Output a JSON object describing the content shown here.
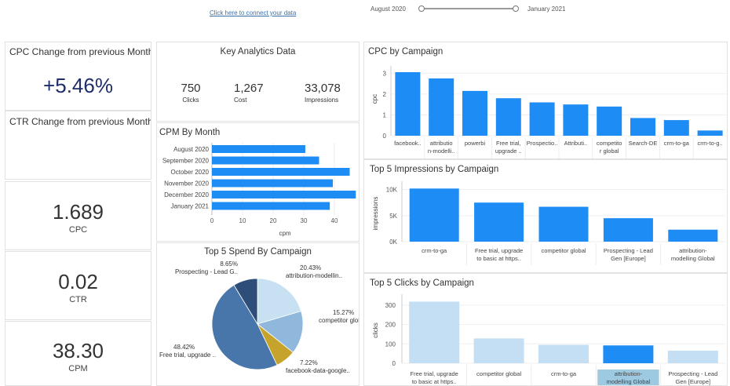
{
  "header": {
    "connect_link": "Click here to connect your data",
    "date_start": "August 2020",
    "date_end": "January 2021"
  },
  "kpis": {
    "cpc_change_title": "CPC Change from previous Month",
    "cpc_change_value": "+5.46%",
    "ctr_change_title": "CTR Change from previous Month",
    "cpc_value": "1.689",
    "cpc_label": "CPC",
    "ctr_value": "0.02",
    "ctr_label": "CTR",
    "cpm_value": "38.30",
    "cpm_label": "CPM"
  },
  "key_analytics": {
    "title": "Key Analytics Data",
    "items": [
      {
        "value": "750",
        "label": "Clicks"
      },
      {
        "value": "1,267",
        "label": "Cost"
      },
      {
        "value": "33,078",
        "label": "Impressions"
      }
    ]
  },
  "colors": {
    "accent": "#1e8cf5",
    "light": "#c4dff4",
    "highlight": "#9ecae1",
    "kpi_blue": "#1f2d6b",
    "pie": [
      "#c7e1f3",
      "#8fb8dc",
      "#c6a42c",
      "#4876aa",
      "#2e4d78"
    ]
  },
  "chart_data": [
    {
      "id": "cpm_by_month",
      "type": "bar",
      "orientation": "horizontal",
      "title": "CPM By Month",
      "categories": [
        "August 2020",
        "September 2020",
        "October 2020",
        "November 2020",
        "December 2020",
        "January 2021"
      ],
      "values": [
        30.5,
        35,
        45,
        39.5,
        47,
        38.5
      ],
      "xlabel": "cpm",
      "xlim": [
        0,
        50
      ],
      "xticks": [
        "0",
        "10",
        "20",
        "30",
        "40"
      ]
    },
    {
      "id": "cpc_by_campaign",
      "type": "bar",
      "title": "CPC by Campaign",
      "categories": [
        [
          "facebook.."
        ],
        [
          "attributio",
          "n-modelli.."
        ],
        [
          "powerbi"
        ],
        [
          "Free trial,",
          "upgrade .."
        ],
        [
          "Prospectio.."
        ],
        [
          "Attributi.."
        ],
        [
          "competito",
          "r global"
        ],
        [
          "Search-DE"
        ],
        [
          "crm-to-ga"
        ],
        [
          "crm-to-g.."
        ]
      ],
      "values": [
        3.05,
        2.75,
        2.15,
        1.8,
        1.6,
        1.5,
        1.4,
        0.85,
        0.75,
        0.25
      ],
      "ylabel": "cpc",
      "ylim": [
        0,
        3.2
      ],
      "yticks": [
        "0",
        "1",
        "2",
        "3"
      ]
    },
    {
      "id": "top5_impressions",
      "type": "bar",
      "title": "Top 5 Impressions by Campaign",
      "categories": [
        [
          "crm-to-ga"
        ],
        [
          "Free trial, upgrade",
          "to basic at https.."
        ],
        [
          "competitor global"
        ],
        [
          "Prospecting - Lead",
          "Gen [Europe]"
        ],
        [
          "attribution-",
          "modelling Global"
        ]
      ],
      "values": [
        10200,
        7500,
        6700,
        4500,
        2300
      ],
      "ylabel": "impressions",
      "ylim": [
        0,
        11000
      ],
      "yticks": [
        "0K",
        "5K",
        "10K"
      ]
    },
    {
      "id": "top5_clicks",
      "type": "bar",
      "title": "Top 5 Clicks by Campaign",
      "categories": [
        [
          "Free trial, upgrade",
          "to basic at https.."
        ],
        [
          "competitor global"
        ],
        [
          "crm-to-ga"
        ],
        [
          "attribution-",
          "modelling Global"
        ],
        [
          "Prospecting - Lead",
          "Gen [Europe]"
        ]
      ],
      "values": [
        318,
        128,
        95,
        92,
        65
      ],
      "highlight_index": 3,
      "ylabel": "clicks",
      "ylim": [
        0,
        340
      ],
      "yticks": [
        "0",
        "100",
        "200",
        "300"
      ]
    },
    {
      "id": "top5_spend",
      "type": "pie",
      "title": "Top 5 Spend By Campaign",
      "slices": [
        {
          "label": "attribution-modellin..",
          "pct": "20.43%",
          "value": 20.43
        },
        {
          "label": "competitor global",
          "pct": "15.27%",
          "value": 15.27
        },
        {
          "label": "facebook-data-google..",
          "pct": "7.22%",
          "value": 7.22
        },
        {
          "label": "Free trial, upgrade ..",
          "pct": "48.42%",
          "value": 48.42
        },
        {
          "label": "Prospecting - Lead G..",
          "pct": "8.65%",
          "value": 8.65
        }
      ]
    }
  ]
}
